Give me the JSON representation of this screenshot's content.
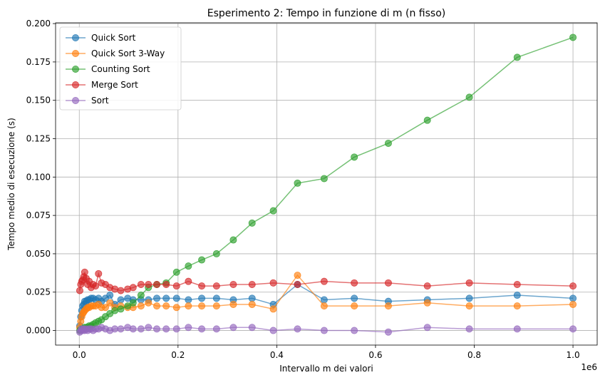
{
  "chart_data": {
    "type": "line",
    "title": "Esperimento 2: Tempo in funzione di m (n fisso)",
    "xlabel": "Intervallo m dei valori",
    "ylabel": "Tempo medio di esecuzione (s)",
    "x_offset_label": "1e6",
    "xlim": [
      -0.048,
      1.049
    ],
    "ylim": [
      -0.0095,
      0.2005
    ],
    "x_ticks": [
      0.0,
      0.2,
      0.4,
      0.6,
      0.8,
      1.0
    ],
    "x_tick_labels": [
      "0.0",
      "0.2",
      "0.4",
      "0.6",
      "0.8",
      "1.0"
    ],
    "y_ticks": [
      0.0,
      0.025,
      0.05,
      0.075,
      0.1,
      0.125,
      0.15,
      0.175,
      0.2
    ],
    "y_tick_labels": [
      "0.000",
      "0.025",
      "0.050",
      "0.075",
      "0.100",
      "0.125",
      "0.150",
      "0.175",
      "0.200"
    ],
    "grid": true,
    "legend_position": "top-left",
    "x": [
      0.001,
      0.003,
      0.005,
      0.007,
      0.009,
      0.011,
      0.014,
      0.017,
      0.02,
      0.024,
      0.028,
      0.033,
      0.039,
      0.045,
      0.053,
      0.062,
      0.072,
      0.084,
      0.098,
      0.109,
      0.125,
      0.14,
      0.157,
      0.176,
      0.197,
      0.221,
      0.248,
      0.278,
      0.312,
      0.35,
      0.393,
      0.442,
      0.496,
      0.557,
      0.626,
      0.705,
      0.79,
      0.887,
      1.0
    ],
    "series": [
      {
        "name": "Quick Sort",
        "color": "#1f77b4",
        "values": [
          0.003,
          0.009,
          0.013,
          0.016,
          0.017,
          0.019,
          0.019,
          0.02,
          0.02,
          0.021,
          0.021,
          0.02,
          0.021,
          0.019,
          0.021,
          0.023,
          0.017,
          0.02,
          0.021,
          0.02,
          0.02,
          0.02,
          0.021,
          0.021,
          0.021,
          0.02,
          0.021,
          0.021,
          0.02,
          0.021,
          0.017,
          0.03,
          0.02,
          0.021,
          0.019,
          0.02,
          0.021,
          0.023,
          0.021
        ]
      },
      {
        "name": "Quick Sort 3-Way",
        "color": "#ff7f0e",
        "values": [
          0.002,
          0.006,
          0.009,
          0.011,
          0.012,
          0.013,
          0.014,
          0.015,
          0.015,
          0.016,
          0.016,
          0.016,
          0.017,
          0.015,
          0.015,
          0.018,
          0.015,
          0.016,
          0.015,
          0.015,
          0.016,
          0.018,
          0.016,
          0.016,
          0.015,
          0.016,
          0.016,
          0.016,
          0.017,
          0.017,
          0.014,
          0.036,
          0.016,
          0.016,
          0.016,
          0.018,
          0.016,
          0.016,
          0.017
        ]
      },
      {
        "name": "Counting Sort",
        "color": "#2ca02c",
        "values": [
          0.0,
          0.0,
          0.001,
          0.001,
          0.001,
          0.002,
          0.002,
          0.002,
          0.003,
          0.003,
          0.004,
          0.005,
          0.006,
          0.007,
          0.009,
          0.011,
          0.013,
          0.014,
          0.016,
          0.018,
          0.023,
          0.028,
          0.03,
          0.031,
          0.038,
          0.042,
          0.046,
          0.05,
          0.059,
          0.07,
          0.078,
          0.096,
          0.099,
          0.113,
          0.122,
          0.137,
          0.152,
          0.178,
          0.191
        ]
      },
      {
        "name": "Merge Sort",
        "color": "#d62728",
        "values": [
          0.026,
          0.03,
          0.032,
          0.033,
          0.035,
          0.038,
          0.034,
          0.03,
          0.032,
          0.028,
          0.03,
          0.029,
          0.037,
          0.031,
          0.03,
          0.028,
          0.027,
          0.026,
          0.027,
          0.028,
          0.03,
          0.03,
          0.03,
          0.03,
          0.029,
          0.032,
          0.029,
          0.029,
          0.03,
          0.03,
          0.031,
          0.03,
          0.032,
          0.031,
          0.031,
          0.029,
          0.031,
          0.03,
          0.029
        ]
      },
      {
        "name": "Sort",
        "color": "#9467bd",
        "values": [
          -0.001,
          0.0,
          0.001,
          0.0,
          0.001,
          0.0,
          0.001,
          0.0,
          0.001,
          0.001,
          0.0,
          0.001,
          0.001,
          0.002,
          0.001,
          0.0,
          0.001,
          0.001,
          0.002,
          0.001,
          0.001,
          0.002,
          0.001,
          0.001,
          0.001,
          0.002,
          0.001,
          0.001,
          0.002,
          0.002,
          0.0,
          0.001,
          0.0,
          0.0,
          -0.001,
          0.002,
          0.001,
          0.001,
          0.001
        ]
      }
    ]
  }
}
